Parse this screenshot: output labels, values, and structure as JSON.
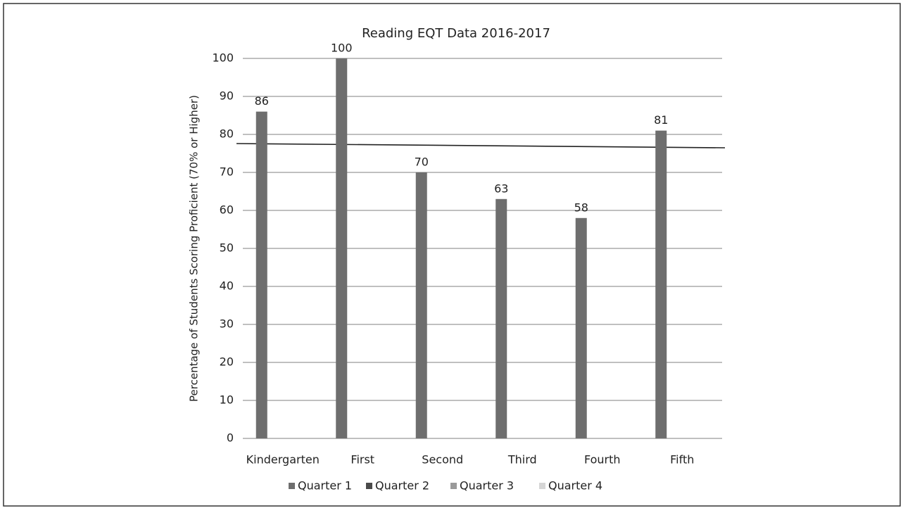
{
  "chart_data": {
    "type": "bar",
    "title": "Reading EQT Data 2016-2017",
    "y_axis_label": "Percentage of Students Scoring Proficient (70% or Higher)",
    "categories": [
      "Kindergarten",
      "First",
      "Second",
      "Third",
      "Fourth",
      "Fifth"
    ],
    "series": [
      {
        "name": "Quarter 1",
        "color": "#6e6e6e",
        "values": [
          86,
          100,
          70,
          63,
          58,
          81
        ]
      },
      {
        "name": "Quarter 2",
        "color": "#4a4a4a",
        "values": [
          null,
          null,
          null,
          null,
          null,
          null
        ]
      },
      {
        "name": "Quarter 3",
        "color": "#9a9a9a",
        "values": [
          null,
          null,
          null,
          null,
          null,
          null
        ]
      },
      {
        "name": "Quarter 4",
        "color": "#d6d6d6",
        "values": [
          null,
          null,
          null,
          null,
          null,
          null
        ]
      }
    ],
    "ylim": [
      0,
      100
    ],
    "yticks": [
      0,
      10,
      20,
      30,
      40,
      50,
      60,
      70,
      80,
      90,
      100
    ],
    "grid": true,
    "legend": "bottom"
  }
}
